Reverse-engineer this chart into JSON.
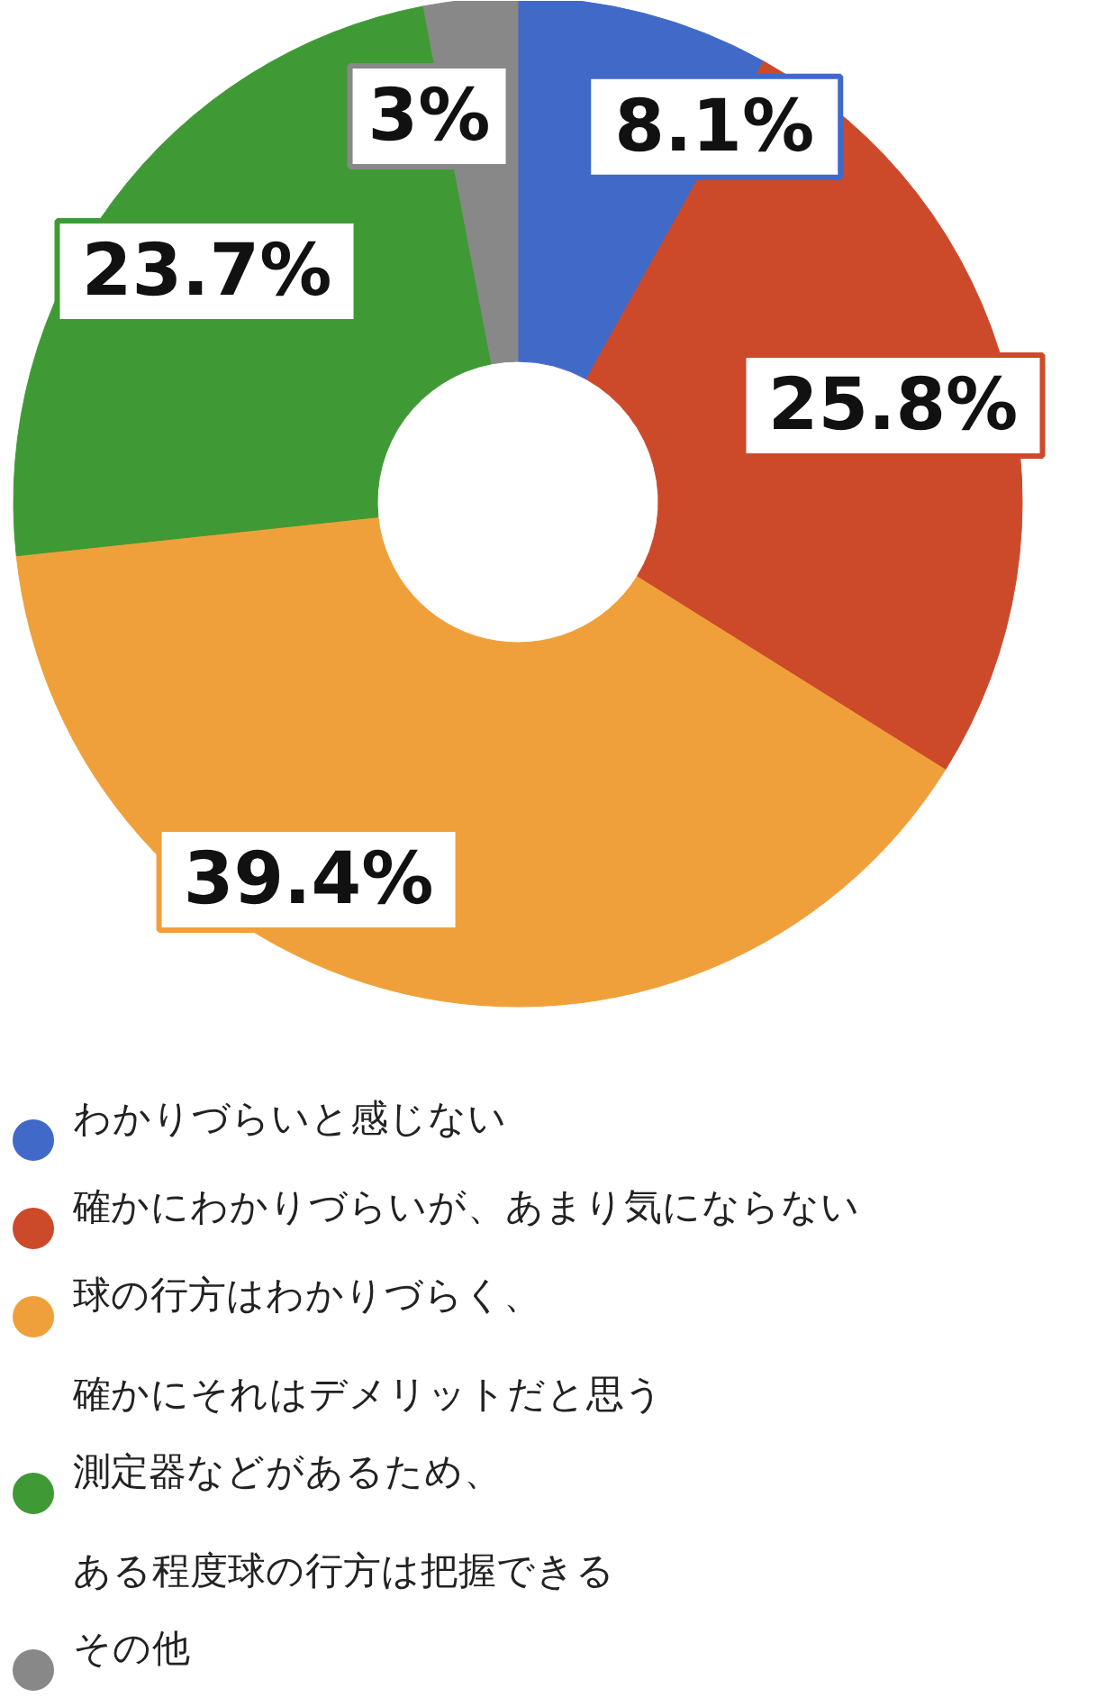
{
  "chart_data": {
    "type": "donut",
    "categories": [
      "わかりづらいと感じない",
      "確かにわかりづらいが、あまり気にならない",
      "球の行方はわかりづらく、確かにそれはデメリットだと思う",
      "測定器などがあるため、ある程度球の行方は把握できる",
      "その他"
    ],
    "values": [
      8.1,
      25.8,
      39.4,
      23.7,
      3
    ],
    "colors": [
      "#4169c8",
      "#cc4a2a",
      "#f0a03a",
      "#3f9a35",
      "#888888"
    ],
    "value_labels": [
      "8.1%",
      "25.8%",
      "39.4%",
      "23.7%",
      "3%"
    ],
    "legend": "bottom"
  }
}
